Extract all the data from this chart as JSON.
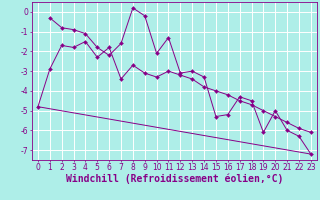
{
  "background_color": "#aeeee8",
  "grid_color": "#ffffff",
  "line_color": "#880088",
  "xlabel": "Windchill (Refroidissement éolien,°C)",
  "xlabel_fontsize": 7,
  "tick_fontsize": 5.5,
  "xlim": [
    -0.5,
    23.5
  ],
  "ylim": [
    -7.5,
    0.5
  ],
  "yticks": [
    0,
    -1,
    -2,
    -3,
    -4,
    -5,
    -6,
    -7
  ],
  "xticks": [
    0,
    1,
    2,
    3,
    4,
    5,
    6,
    7,
    8,
    9,
    10,
    11,
    12,
    13,
    14,
    15,
    16,
    17,
    18,
    19,
    20,
    21,
    22,
    23
  ],
  "series1": {
    "x": [
      1,
      2,
      3,
      4,
      5,
      6,
      7,
      8,
      9,
      10,
      11,
      12,
      13,
      14,
      15,
      16,
      17,
      18,
      19,
      20,
      21,
      22,
      23
    ],
    "y": [
      -0.3,
      -0.8,
      -0.9,
      -1.1,
      -1.8,
      -2.2,
      -1.6,
      0.2,
      -0.2,
      -2.1,
      -1.3,
      -3.1,
      -3.0,
      -3.3,
      -5.3,
      -5.2,
      -4.3,
      -4.5,
      -6.1,
      -5.0,
      -6.0,
      -6.3,
      -7.2
    ]
  },
  "series2": {
    "x": [
      0,
      1,
      2,
      3,
      4,
      5,
      6,
      7,
      8,
      9,
      10,
      11,
      12,
      13,
      14,
      15,
      16,
      17,
      18,
      19,
      20,
      21,
      22,
      23
    ],
    "y": [
      -4.8,
      -2.9,
      -1.7,
      -1.8,
      -1.5,
      -2.3,
      -1.8,
      -3.4,
      -2.7,
      -3.1,
      -3.3,
      -3.0,
      -3.2,
      -3.4,
      -3.8,
      -4.0,
      -4.2,
      -4.5,
      -4.7,
      -5.0,
      -5.3,
      -5.6,
      -5.9,
      -6.1
    ]
  },
  "series3": {
    "x": [
      0,
      23
    ],
    "y": [
      -4.8,
      -7.2
    ]
  }
}
